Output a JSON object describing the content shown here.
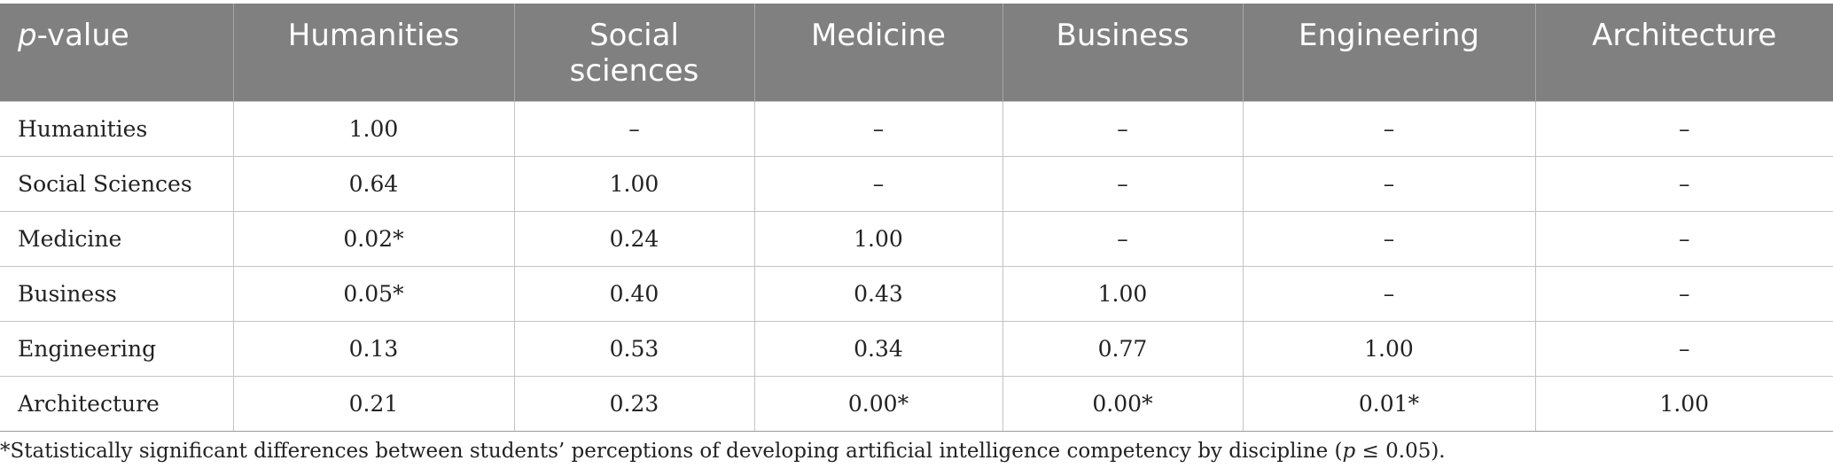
{
  "table": {
    "header": {
      "corner_italic": "p",
      "corner_rest": "-value",
      "columns": [
        "Humanities",
        "Social sciences",
        "Medicine",
        "Business",
        "Engineering",
        "Architecture"
      ]
    },
    "rows": [
      {
        "label": "Humanities",
        "cells": [
          "1.00",
          "–",
          "–",
          "–",
          "–",
          "–"
        ]
      },
      {
        "label": "Social Sciences",
        "cells": [
          "0.64",
          "1.00",
          "–",
          "–",
          "–",
          "–"
        ]
      },
      {
        "label": "Medicine",
        "cells": [
          "0.02*",
          "0.24",
          "1.00",
          "–",
          "–",
          "–"
        ]
      },
      {
        "label": "Business",
        "cells": [
          "0.05*",
          "0.40",
          "0.43",
          "1.00",
          "–",
          "–"
        ]
      },
      {
        "label": "Engineering",
        "cells": [
          "0.13",
          "0.53",
          "0.34",
          "0.77",
          "1.00",
          "–"
        ]
      },
      {
        "label": "Architecture",
        "cells": [
          "0.21",
          "0.23",
          "0.00*",
          "0.00*",
          "0.01*",
          "1.00"
        ]
      }
    ]
  },
  "footnote": {
    "text_before": "*Statistically significant differences between students’ perceptions of developing artificial intelligence competency by discipline (",
    "italic": "p",
    "text_after": " ≤ 0.05)."
  },
  "colors": {
    "header_bg": "#808080",
    "header_text": "#ffffff",
    "grid": "#c4c4c4"
  }
}
